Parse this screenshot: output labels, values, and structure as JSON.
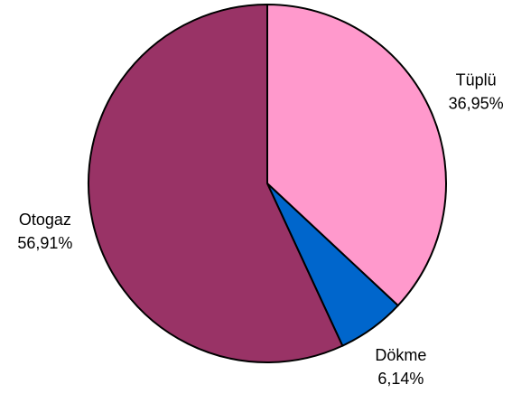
{
  "chart_data": {
    "type": "pie",
    "categories": [
      "Tüplü",
      "Dökme",
      "Otogaz"
    ],
    "values": [
      36.95,
      6.14,
      56.91
    ],
    "value_labels": [
      "36,95%",
      "6,14%",
      "56,91%"
    ],
    "colors": [
      "#ff99cc",
      "#0066cc",
      "#993366"
    ]
  }
}
